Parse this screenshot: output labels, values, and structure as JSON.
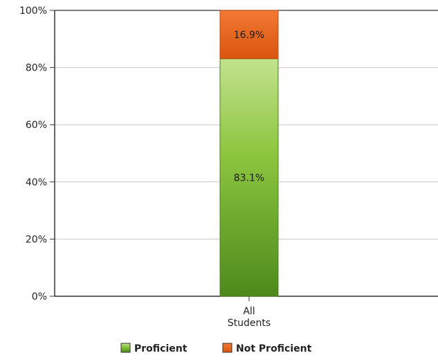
{
  "chart_data": {
    "type": "bar",
    "stacked": true,
    "categories": [
      "All\nStudents"
    ],
    "series": [
      {
        "name": "Proficient",
        "values": [
          83.1
        ],
        "labels": [
          "83.1%"
        ],
        "color": "#6aac2c"
      },
      {
        "name": "Not Proficient",
        "values": [
          16.9
        ],
        "labels": [
          "16.9%"
        ],
        "color": "#ee6a1c"
      }
    ],
    "ylim": [
      0,
      100
    ],
    "yticks": [
      "0%",
      "20%",
      "40%",
      "60%",
      "80%",
      "100%"
    ],
    "grid": true,
    "legend_position": "bottom"
  }
}
